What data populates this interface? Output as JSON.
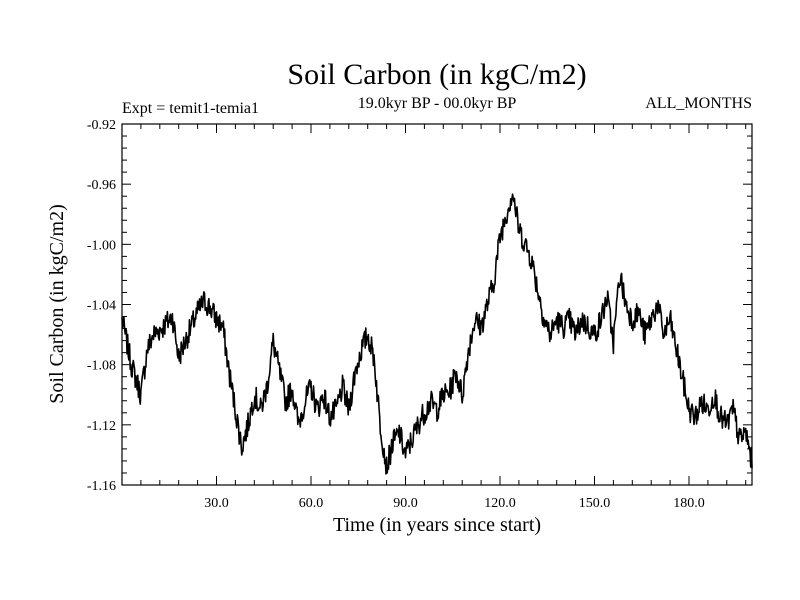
{
  "chart_data": {
    "type": "line",
    "title": "Soil Carbon (in kgC/m2)",
    "subtitle": "19.0kyr BP - 00.0kyr BP",
    "experiment_label": "Expt = temit1-temia1",
    "months_label": "ALL_MONTHS",
    "xlabel": "Time (in years since start)",
    "ylabel": "Soil Carbon (in kgC/m2)",
    "xlim": [
      0,
      200
    ],
    "ylim": [
      -1.16,
      -0.92
    ],
    "x_ticks": [
      "30.0",
      "60.0",
      "90.0",
      "120.0",
      "150.0",
      "180.0"
    ],
    "y_ticks": [
      "-0.92",
      "-0.96",
      "-1.00",
      "-1.04",
      "-1.08",
      "-1.12",
      "-1.16"
    ],
    "series": [
      {
        "name": "Soil Carbon",
        "color": "#000000",
        "x": [
          0,
          3,
          6,
          8,
          10,
          13,
          16,
          18,
          21,
          24,
          26,
          28,
          30,
          32,
          34,
          36,
          38,
          40,
          42,
          44,
          46,
          48,
          50,
          52,
          54,
          56,
          58,
          60,
          62,
          64,
          66,
          68,
          70,
          72,
          74,
          76,
          78,
          80,
          82,
          84,
          86,
          88,
          90,
          92,
          95,
          98,
          100,
          102,
          104,
          106,
          108,
          110,
          112,
          114,
          116,
          118,
          120,
          122,
          124,
          126,
          128,
          130,
          132,
          134,
          136,
          138,
          140,
          142,
          144,
          146,
          148,
          150,
          152,
          154,
          156,
          158,
          160,
          162,
          164,
          166,
          168,
          170,
          172,
          174,
          176,
          178,
          180,
          182,
          184,
          186,
          188,
          190,
          192,
          194,
          196,
          198,
          200
        ],
        "values": [
          -1.05,
          -1.08,
          -1.1,
          -1.07,
          -1.06,
          -1.055,
          -1.048,
          -1.075,
          -1.06,
          -1.045,
          -1.038,
          -1.042,
          -1.05,
          -1.055,
          -1.085,
          -1.11,
          -1.135,
          -1.12,
          -1.1,
          -1.11,
          -1.095,
          -1.065,
          -1.085,
          -1.105,
          -1.095,
          -1.12,
          -1.105,
          -1.095,
          -1.11,
          -1.1,
          -1.115,
          -1.11,
          -1.095,
          -1.11,
          -1.085,
          -1.07,
          -1.06,
          -1.075,
          -1.12,
          -1.148,
          -1.132,
          -1.125,
          -1.14,
          -1.13,
          -1.115,
          -1.105,
          -1.11,
          -1.1,
          -1.098,
          -1.085,
          -1.1,
          -1.07,
          -1.05,
          -1.055,
          -1.04,
          -1.025,
          -0.995,
          -0.98,
          -0.965,
          -0.99,
          -1.0,
          -1.01,
          -1.03,
          -1.05,
          -1.06,
          -1.05,
          -1.055,
          -1.05,
          -1.06,
          -1.05,
          -1.055,
          -1.06,
          -1.05,
          -1.035,
          -1.065,
          -1.02,
          -1.04,
          -1.05,
          -1.045,
          -1.06,
          -1.05,
          -1.04,
          -1.06,
          -1.05,
          -1.07,
          -1.09,
          -1.11,
          -1.115,
          -1.105,
          -1.11,
          -1.1,
          -1.115,
          -1.12,
          -1.11,
          -1.13,
          -1.125,
          -1.145
        ]
      }
    ]
  }
}
